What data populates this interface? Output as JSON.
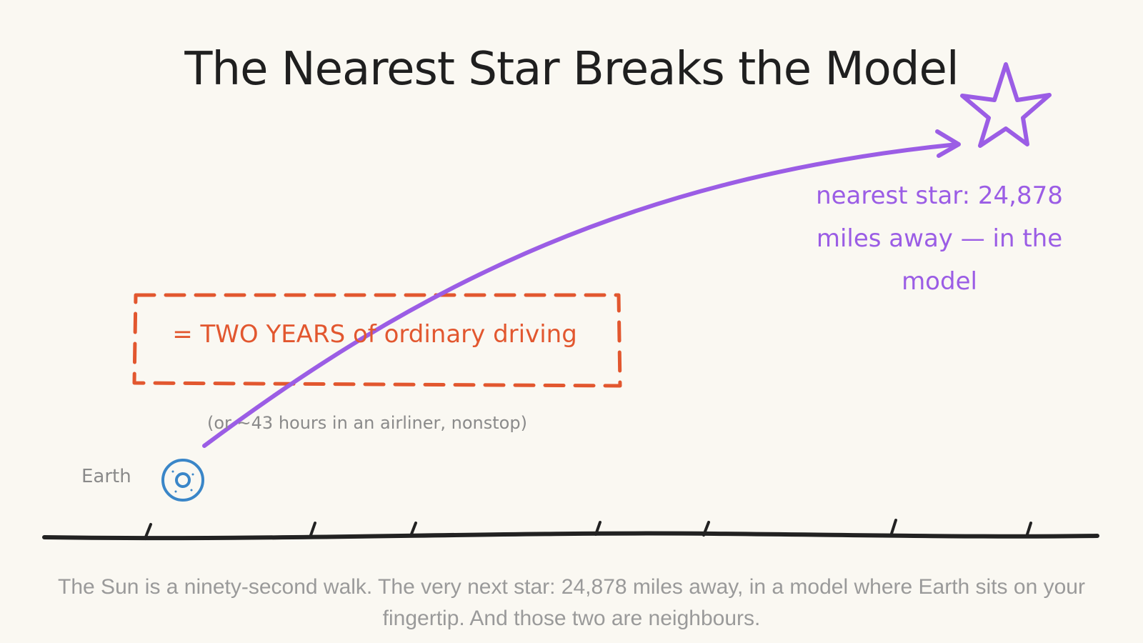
{
  "title": "The Nearest Star Breaks the Model",
  "star": {
    "icon": "star-icon",
    "note": "nearest star: 24,878 miles away — in the model",
    "color": "#9b5de5"
  },
  "driving_box": {
    "text": "= TWO YEARS of ordinary driving",
    "color": "#e2572f"
  },
  "airliner_note": "(or ~43 hours in an airliner, nonstop)",
  "earth": {
    "label": "Earth",
    "icon": "earth-icon",
    "color": "#3a86c8"
  },
  "caption": "The Sun is a ninety-second walk. The very next star: 24,878 miles away, in a model where Earth sits on your fingertip. And those two are neighbours."
}
